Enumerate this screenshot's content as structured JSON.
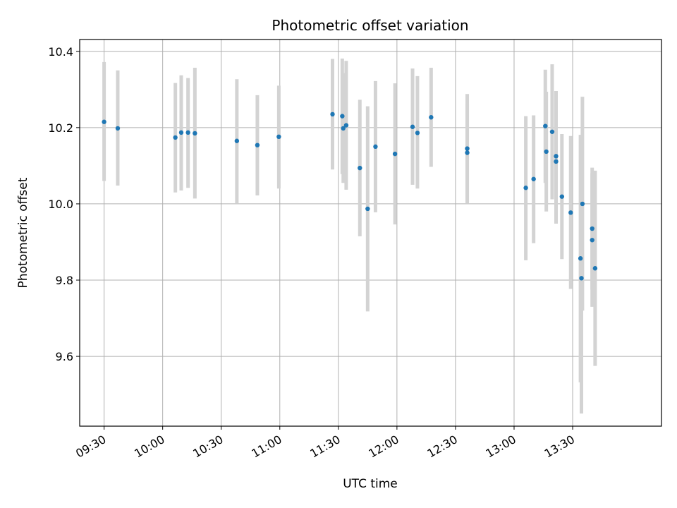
{
  "chart_data": {
    "type": "scatter",
    "title": "Photometric offset variation",
    "xlabel": "UTC time",
    "ylabel": "Photometric offset",
    "x_ticks": [
      "09:30",
      "10:00",
      "10:30",
      "11:00",
      "11:30",
      "12:00",
      "12:30",
      "13:00",
      "13:30"
    ],
    "y_ticks": [
      "9.6",
      "9.8",
      "10.0",
      "10.2",
      "10.4"
    ],
    "xlim": [
      "09:17:30",
      "14:15:30"
    ],
    "ylim": [
      9.417,
      10.431
    ],
    "grid": true,
    "marker_color": "#1f77b4",
    "errorbar_color": "#d3d3d3",
    "series": [
      {
        "points": [
          {
            "x": "09:30:00",
            "y": 10.215,
            "lo": 10.06,
            "hi": 10.372
          },
          {
            "x": "09:37:00",
            "y": 10.198,
            "lo": 10.048,
            "hi": 10.35
          },
          {
            "x": "10:06:30",
            "y": 10.174,
            "lo": 10.03,
            "hi": 10.317
          },
          {
            "x": "10:09:30",
            "y": 10.187,
            "lo": 10.035,
            "hi": 10.337
          },
          {
            "x": "10:13:00",
            "y": 10.187,
            "lo": 10.042,
            "hi": 10.33
          },
          {
            "x": "10:16:30",
            "y": 10.185,
            "lo": 10.014,
            "hi": 10.357
          },
          {
            "x": "10:38:00",
            "y": 10.165,
            "lo": 10.0,
            "hi": 10.327
          },
          {
            "x": "10:48:30",
            "y": 10.154,
            "lo": 10.022,
            "hi": 10.285
          },
          {
            "x": "10:59:30",
            "y": 10.176,
            "lo": 10.04,
            "hi": 10.31
          },
          {
            "x": "11:27:00",
            "y": 10.235,
            "lo": 10.09,
            "hi": 10.38
          },
          {
            "x": "11:32:00",
            "y": 10.23,
            "lo": 10.078,
            "hi": 10.381
          },
          {
            "x": "11:32:30",
            "y": 10.198,
            "lo": 10.055,
            "hi": 10.343
          },
          {
            "x": "11:34:00",
            "y": 10.206,
            "lo": 10.037,
            "hi": 10.375
          },
          {
            "x": "11:41:00",
            "y": 10.094,
            "lo": 9.915,
            "hi": 10.273
          },
          {
            "x": "11:45:00",
            "y": 9.987,
            "lo": 9.718,
            "hi": 10.256
          },
          {
            "x": "11:49:00",
            "y": 10.15,
            "lo": 9.978,
            "hi": 10.322
          },
          {
            "x": "11:59:00",
            "y": 10.131,
            "lo": 9.946,
            "hi": 10.316
          },
          {
            "x": "12:08:00",
            "y": 10.202,
            "lo": 10.05,
            "hi": 10.355
          },
          {
            "x": "12:10:30",
            "y": 10.186,
            "lo": 10.04,
            "hi": 10.335
          },
          {
            "x": "12:17:30",
            "y": 10.227,
            "lo": 10.097,
            "hi": 10.357
          },
          {
            "x": "12:36:00",
            "y": 10.145,
            "lo": 10.0,
            "hi": 10.288
          },
          {
            "x": "12:36:00",
            "y": 10.134,
            "lo": 10.005,
            "hi": 10.262
          },
          {
            "x": "13:06:00",
            "y": 10.042,
            "lo": 9.852,
            "hi": 10.23
          },
          {
            "x": "13:10:00",
            "y": 10.065,
            "lo": 9.897,
            "hi": 10.232
          },
          {
            "x": "13:16:00",
            "y": 10.204,
            "lo": 10.055,
            "hi": 10.352
          },
          {
            "x": "13:16:30",
            "y": 10.137,
            "lo": 9.98,
            "hi": 10.294
          },
          {
            "x": "13:19:30",
            "y": 10.189,
            "lo": 10.012,
            "hi": 10.366
          },
          {
            "x": "13:21:30",
            "y": 10.125,
            "lo": 9.955,
            "hi": 10.296
          },
          {
            "x": "13:21:30",
            "y": 10.111,
            "lo": 9.948,
            "hi": 10.276
          },
          {
            "x": "13:24:30",
            "y": 10.019,
            "lo": 9.855,
            "hi": 10.183
          },
          {
            "x": "13:29:00",
            "y": 9.977,
            "lo": 9.777,
            "hi": 10.178
          },
          {
            "x": "13:34:00",
            "y": 9.857,
            "lo": 9.532,
            "hi": 10.181
          },
          {
            "x": "13:34:30",
            "y": 9.805,
            "lo": 9.45,
            "hi": 10.155
          },
          {
            "x": "13:35:00",
            "y": 10.0,
            "lo": 9.72,
            "hi": 10.281
          },
          {
            "x": "13:40:00",
            "y": 9.935,
            "lo": 9.775,
            "hi": 10.095
          },
          {
            "x": "13:40:00",
            "y": 9.905,
            "lo": 9.73,
            "hi": 10.08
          },
          {
            "x": "13:41:30",
            "y": 9.831,
            "lo": 9.575,
            "hi": 10.087
          }
        ]
      }
    ]
  }
}
